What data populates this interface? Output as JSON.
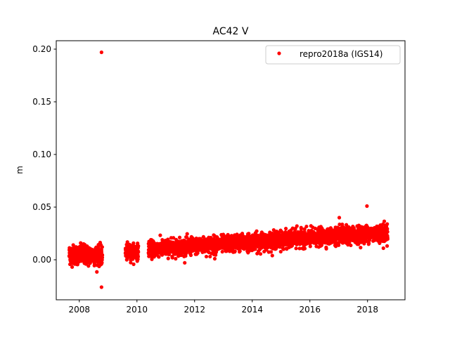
{
  "chart_data": {
    "type": "scatter",
    "title": "AC42 V",
    "xlabel": "",
    "ylabel": "m",
    "xlim": [
      2007.2,
      2019.3
    ],
    "ylim": [
      -0.038,
      0.208
    ],
    "xticks": [
      2008,
      2010,
      2012,
      2014,
      2016,
      2018
    ],
    "yticks": [
      0.0,
      0.05,
      0.1,
      0.15,
      0.2
    ],
    "ytick_labels": [
      "0.00",
      "0.05",
      "0.10",
      "0.15",
      "0.20"
    ],
    "grid": false,
    "legend_position": "top-right",
    "marker_color": "#ff0000",
    "series": [
      {
        "name": "repro2018a (IGS14)",
        "color": "#ff0000",
        "segments": [
          {
            "x_start": 2007.65,
            "x_end": 2008.8,
            "trend_start": 0.005,
            "trend_end": 0.004,
            "spread": 0.0045
          },
          {
            "x_start": 2009.6,
            "x_end": 2010.05,
            "trend_start": 0.007,
            "trend_end": 0.008,
            "spread": 0.0035
          },
          {
            "x_start": 2010.4,
            "x_end": 2018.7,
            "trend_start": 0.01,
            "trend_end": 0.026,
            "spread": 0.0038
          }
        ],
        "outliers": [
          {
            "x": 2008.77,
            "y": 0.197
          },
          {
            "x": 2008.77,
            "y": -0.026
          },
          {
            "x": 2017.98,
            "y": 0.051
          },
          {
            "x": 2018.55,
            "y": 0.011
          },
          {
            "x": 2017.02,
            "y": 0.04
          },
          {
            "x": 2012.7,
            "y": 0.001
          },
          {
            "x": 2008.15,
            "y": 0.015
          },
          {
            "x": 2015.55,
            "y": 0.032
          }
        ]
      }
    ]
  }
}
